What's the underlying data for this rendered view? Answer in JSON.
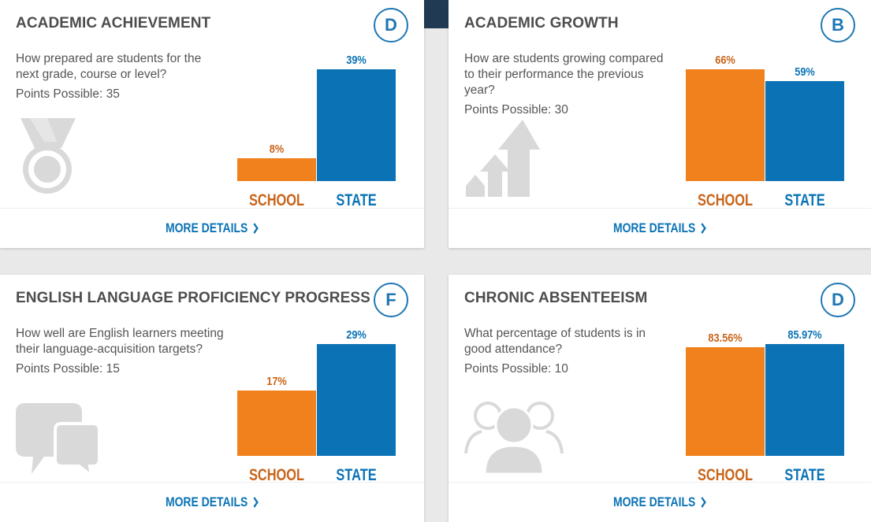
{
  "colors": {
    "school": "#f0811d",
    "state": "#0b73b5",
    "title": "#4d4d4d",
    "icon": "#d9d9d9"
  },
  "labels": {
    "school": "SCHOOL",
    "state": "STATE",
    "more_details": "MORE DETAILS"
  },
  "cards": [
    {
      "title": "ACADEMIC ACHIEVEMENT",
      "grade": "D",
      "question": "How prepared are students for the next grade, course or level?",
      "points": "Points Possible: 35",
      "icon": "medal-icon",
      "school_value": "8%",
      "state_value": "39%"
    },
    {
      "title": "ACADEMIC GROWTH",
      "grade": "B",
      "question": "How are students growing compared to their performance the previous year?",
      "points": "Points Possible: 30",
      "icon": "growth-arrows-icon",
      "school_value": "66%",
      "state_value": "59%"
    },
    {
      "title": "ENGLISH LANGUAGE PROFICIENCY PROGRESS",
      "grade": "F",
      "question": "How well are English learners meeting their language-acquisition targets?",
      "points": "Points Possible: 15",
      "icon": "speech-bubbles-icon",
      "school_value": "17%",
      "state_value": "29%"
    },
    {
      "title": "CHRONIC ABSENTEEISM",
      "grade": "D",
      "question": "What percentage of students is in good attendance?",
      "points": "Points Possible: 10",
      "icon": "people-group-icon",
      "school_value": "83.56%",
      "state_value": "85.97%"
    }
  ],
  "chart_data": [
    {
      "type": "bar",
      "title": "ACADEMIC ACHIEVEMENT",
      "categories": [
        "SCHOOL",
        "STATE"
      ],
      "values": [
        8,
        39
      ],
      "ylim": [
        0,
        39
      ]
    },
    {
      "type": "bar",
      "title": "ACADEMIC GROWTH",
      "categories": [
        "SCHOOL",
        "STATE"
      ],
      "values": [
        66,
        59
      ],
      "ylim": [
        0,
        66
      ]
    },
    {
      "type": "bar",
      "title": "ENGLISH LANGUAGE PROFICIENCY PROGRESS",
      "categories": [
        "SCHOOL",
        "STATE"
      ],
      "values": [
        17,
        29
      ],
      "ylim": [
        0,
        29
      ]
    },
    {
      "type": "bar",
      "title": "CHRONIC ABSENTEEISM",
      "categories": [
        "SCHOOL",
        "STATE"
      ],
      "values": [
        83.56,
        85.97
      ],
      "ylim": [
        0,
        85.97
      ]
    }
  ]
}
